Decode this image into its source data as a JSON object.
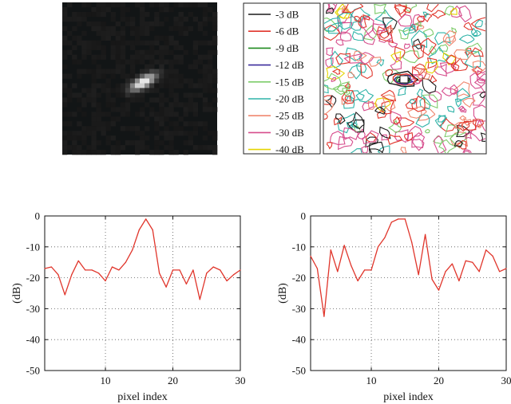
{
  "legend": {
    "entries": [
      {
        "label": "-3 dB",
        "color": "#1a1a1a"
      },
      {
        "label": "-6 dB",
        "color": "#e0352b"
      },
      {
        "label": "-9 dB",
        "color": "#1f8a1f"
      },
      {
        "label": "-12 dB",
        "color": "#3b2c9c"
      },
      {
        "label": "-15 dB",
        "color": "#7dcc6a"
      },
      {
        "label": "-20 dB",
        "color": "#2fb3a8"
      },
      {
        "label": "-25 dB",
        "color": "#f0876f"
      },
      {
        "label": "-30 dB",
        "color": "#d64c8c"
      },
      {
        "label": "-40 dB",
        "color": "#e5d400"
      }
    ]
  },
  "chart_data": [
    {
      "type": "line",
      "xlabel": "pixel index",
      "ylabel": "(dB)",
      "xlim": [
        1,
        30
      ],
      "ylim": [
        -50,
        0
      ],
      "xticks": [
        10,
        20,
        30
      ],
      "yticks": [
        0,
        -10,
        -20,
        -30,
        -40,
        -50
      ],
      "grid": true,
      "line_color": "#e0352b",
      "x": [
        1,
        2,
        3,
        4,
        5,
        6,
        7,
        8,
        9,
        10,
        11,
        12,
        13,
        14,
        15,
        16,
        17,
        18,
        19,
        20,
        21,
        22,
        23,
        24,
        25,
        26,
        27,
        28,
        29,
        30
      ],
      "y": [
        -17,
        -16.5,
        -19,
        -25.5,
        -19,
        -14.5,
        -17.5,
        -17.5,
        -18.5,
        -21,
        -16.5,
        -17.5,
        -15,
        -11,
        -4.5,
        -1,
        -4.5,
        -18.5,
        -23,
        -17.5,
        -17.5,
        -22,
        -17.5,
        -27,
        -18.5,
        -16.5,
        -17.5,
        -21,
        -19,
        -17.5
      ]
    },
    {
      "type": "line",
      "xlabel": "pixel index",
      "ylabel": "(dB)",
      "xlim": [
        1,
        30
      ],
      "ylim": [
        -50,
        0
      ],
      "xticks": [
        10,
        20,
        30
      ],
      "yticks": [
        0,
        -10,
        -20,
        -30,
        -40,
        -50
      ],
      "grid": true,
      "line_color": "#e0352b",
      "x": [
        1,
        2,
        3,
        4,
        5,
        6,
        7,
        8,
        9,
        10,
        11,
        12,
        13,
        14,
        15,
        16,
        17,
        18,
        19,
        20,
        21,
        22,
        23,
        24,
        25,
        26,
        27,
        28,
        29,
        30
      ],
      "y": [
        -13,
        -17,
        -32.5,
        -11,
        -18,
        -9.5,
        -16,
        -21,
        -17.5,
        -17.5,
        -10,
        -7,
        -2,
        -1,
        -1,
        -8.5,
        -19,
        -6,
        -20.5,
        -24,
        -18,
        -15.5,
        -21,
        -14.5,
        -15,
        -18,
        -11,
        -13,
        -18,
        -17
      ]
    }
  ]
}
